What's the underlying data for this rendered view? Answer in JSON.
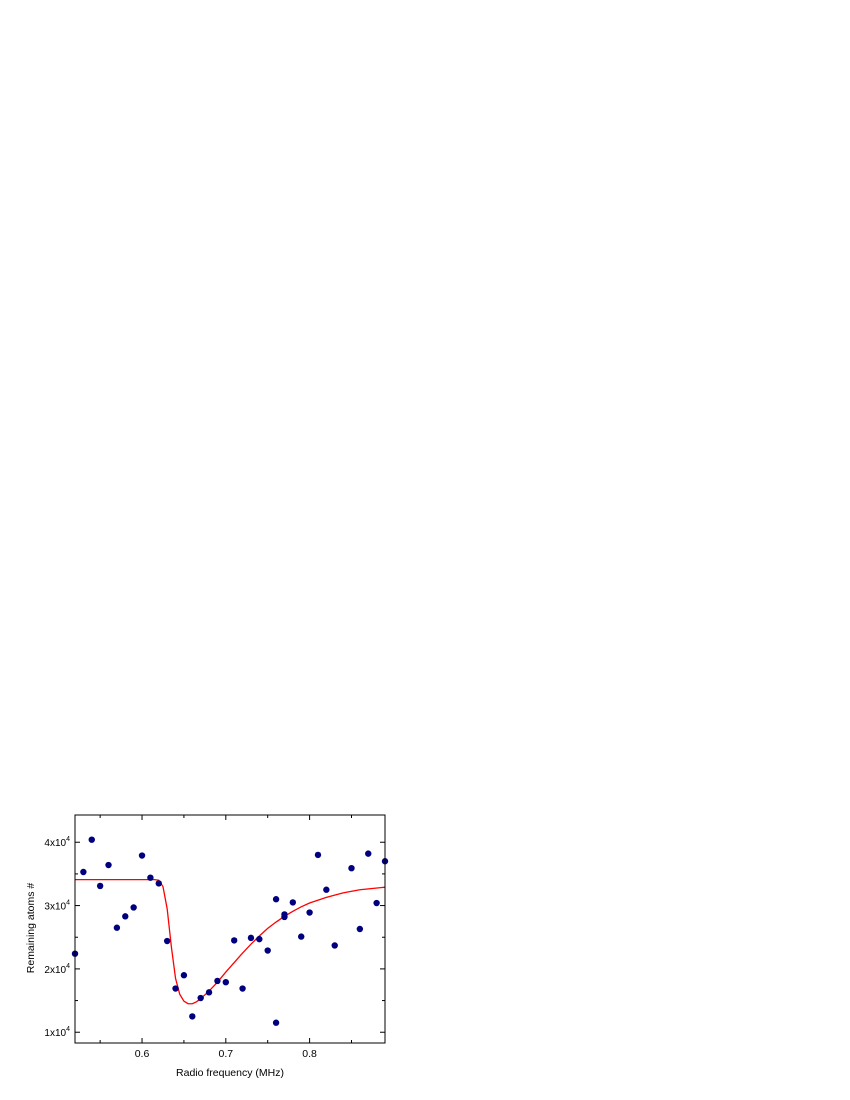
{
  "chart_data": {
    "type": "scatter",
    "xlabel": "Radio frequency (MHz)",
    "ylabel": "Remaining atoms #",
    "xlim": [
      0.52,
      0.89
    ],
    "ylim": [
      8300,
      44300
    ],
    "x_ticks": [
      {
        "value": 0.6,
        "label": "0.6"
      },
      {
        "value": 0.7,
        "label": "0.7"
      },
      {
        "value": 0.8,
        "label": "0.8"
      }
    ],
    "y_ticks": [
      {
        "value": 10000,
        "base": "1x10",
        "exp": "4"
      },
      {
        "value": 20000,
        "base": "2x10",
        "exp": "4"
      },
      {
        "value": 30000,
        "base": "3x10",
        "exp": "4"
      },
      {
        "value": 40000,
        "base": "4x10",
        "exp": "4"
      }
    ],
    "grid": false,
    "series": [
      {
        "kind": "points",
        "color": "#00007f",
        "points": [
          [
            0.52,
            22400
          ],
          [
            0.53,
            35300
          ],
          [
            0.54,
            40400
          ],
          [
            0.55,
            33100
          ],
          [
            0.56,
            36400
          ],
          [
            0.57,
            26500
          ],
          [
            0.58,
            28300
          ],
          [
            0.59,
            29700
          ],
          [
            0.6,
            37900
          ],
          [
            0.61,
            34400
          ],
          [
            0.62,
            33500
          ],
          [
            0.63,
            24400
          ],
          [
            0.64,
            16900
          ],
          [
            0.65,
            19000
          ],
          [
            0.66,
            12500
          ],
          [
            0.67,
            15400
          ],
          [
            0.68,
            16300
          ],
          [
            0.69,
            18100
          ],
          [
            0.7,
            17900
          ],
          [
            0.71,
            24500
          ],
          [
            0.72,
            16900
          ],
          [
            0.73,
            24900
          ],
          [
            0.74,
            24700
          ],
          [
            0.75,
            22900
          ],
          [
            0.76,
            31000
          ],
          [
            0.76,
            11500
          ],
          [
            0.77,
            28600
          ],
          [
            0.77,
            28200
          ],
          [
            0.78,
            30500
          ],
          [
            0.79,
            25100
          ],
          [
            0.8,
            28900
          ],
          [
            0.81,
            38000
          ],
          [
            0.82,
            32500
          ],
          [
            0.83,
            23700
          ],
          [
            0.85,
            35900
          ],
          [
            0.86,
            26300
          ],
          [
            0.87,
            38200
          ],
          [
            0.88,
            30400
          ],
          [
            0.89,
            37000
          ]
        ]
      },
      {
        "kind": "fit",
        "color": "#ff0000",
        "points": [
          [
            0.52,
            34100
          ],
          [
            0.55,
            34100
          ],
          [
            0.58,
            34100
          ],
          [
            0.6,
            34100
          ],
          [
            0.615,
            34100
          ],
          [
            0.62,
            34000
          ],
          [
            0.625,
            33000
          ],
          [
            0.63,
            29500
          ],
          [
            0.635,
            23500
          ],
          [
            0.64,
            18500
          ],
          [
            0.645,
            16000
          ],
          [
            0.65,
            14900
          ],
          [
            0.655,
            14500
          ],
          [
            0.66,
            14500
          ],
          [
            0.665,
            14800
          ],
          [
            0.67,
            15300
          ],
          [
            0.68,
            16500
          ],
          [
            0.69,
            17900
          ],
          [
            0.7,
            19500
          ],
          [
            0.71,
            21000
          ],
          [
            0.72,
            22500
          ],
          [
            0.73,
            23900
          ],
          [
            0.74,
            25200
          ],
          [
            0.75,
            26400
          ],
          [
            0.76,
            27400
          ],
          [
            0.77,
            28300
          ],
          [
            0.78,
            29100
          ],
          [
            0.79,
            29800
          ],
          [
            0.8,
            30400
          ],
          [
            0.82,
            31300
          ],
          [
            0.84,
            32000
          ],
          [
            0.86,
            32500
          ],
          [
            0.89,
            32900
          ]
        ]
      }
    ]
  }
}
